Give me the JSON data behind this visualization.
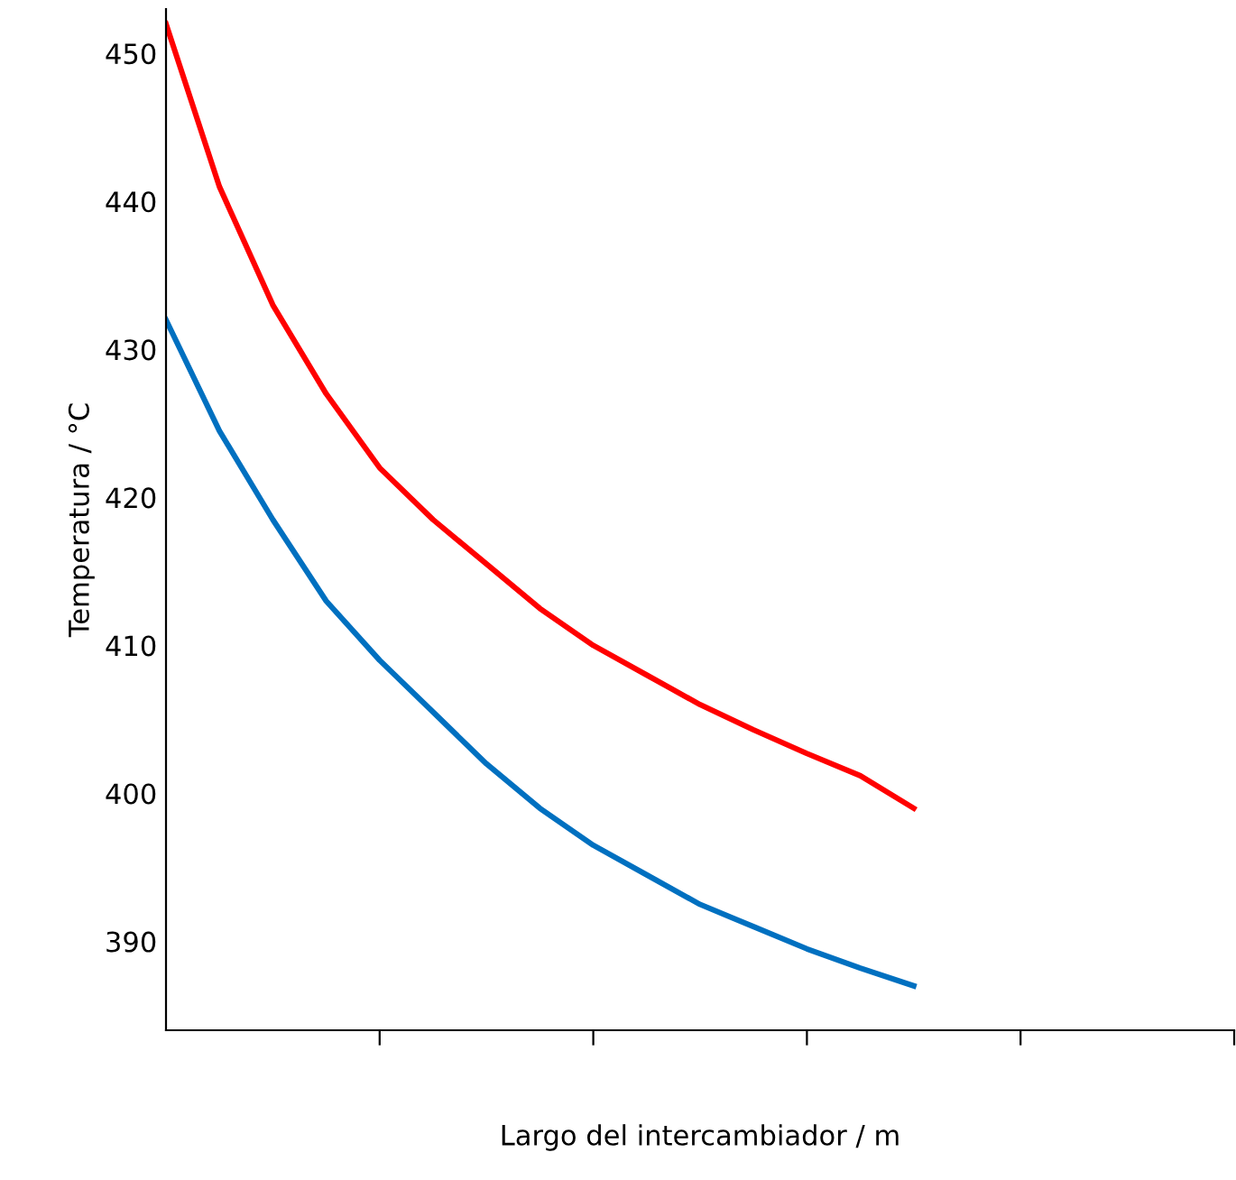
{
  "chart_data": {
    "type": "line",
    "xlabel": "Largo del intercambiador / m",
    "ylabel": "Temperatura / °C",
    "categories": [
      null,
      null,
      null,
      null,
      null,
      null,
      null,
      null,
      null,
      null,
      null,
      null,
      null,
      null,
      null,
      null,
      null,
      null,
      null,
      null,
      null
    ],
    "series": [
      {
        "color": "#ff0000",
        "values": [
          452,
          441,
          433,
          427,
          422,
          418.5,
          415.5,
          412.5,
          410,
          408,
          406,
          404.3,
          402.7,
          401.2,
          399,
          null,
          null,
          null,
          null,
          null,
          null
        ]
      },
      {
        "color": "#0070c0",
        "values": [
          432,
          424.5,
          418.5,
          413,
          409,
          405.5,
          402,
          399,
          396.5,
          394.5,
          392.5,
          391,
          389.5,
          388.2,
          387,
          null,
          null,
          null,
          null,
          null,
          null
        ]
      }
    ],
    "ylim": [
      384,
      453
    ],
    "yticks": [
      390,
      400,
      410,
      420,
      430,
      440,
      450
    ],
    "grid": false,
    "marker": "none",
    "line_style": "solid"
  }
}
